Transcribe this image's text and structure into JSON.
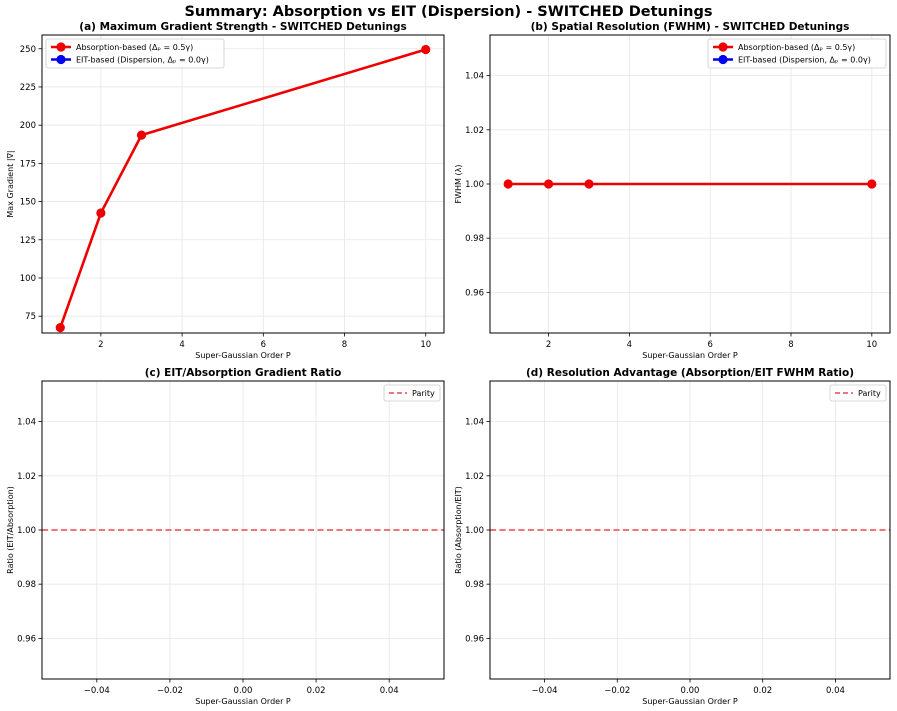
{
  "figure": {
    "title": "Summary: Absorption vs EIT (Dispersion) - SWITCHED Detunings"
  },
  "colors": {
    "absorption": "#ee0000",
    "eit": "#0000ee",
    "parity": "#e8494b",
    "grid": "#e6e6e6"
  },
  "chart_data": [
    {
      "type": "line",
      "title": "(a) Maximum Gradient Strength - SWITCHED Detunings",
      "xlabel": "Super-Gaussian Order P",
      "ylabel": "Max Gradient |∇|",
      "xlim": [
        0.55,
        10.45
      ],
      "ylim": [
        64,
        259
      ],
      "xticks": [
        2,
        4,
        6,
        8,
        10
      ],
      "yticks": [
        75,
        100,
        125,
        150,
        175,
        200,
        225,
        250
      ],
      "ytick_labels": [
        "75",
        "100",
        "125",
        "150",
        "175",
        "200",
        "225",
        "250"
      ],
      "grid": true,
      "legend": "top-left",
      "series": [
        {
          "name": "Absorption-based (Δₚ = 0.5γ)",
          "color": "#ee0000",
          "x": [
            1,
            2,
            3,
            10
          ],
          "y": [
            67.5,
            142.5,
            193.5,
            249.5
          ]
        },
        {
          "name": "EIT-based (Dispersion, Δₚ = 0.0γ)",
          "color": "#0000ee",
          "x": [],
          "y": []
        }
      ]
    },
    {
      "type": "line",
      "title": "(b) Spatial Resolution (FWHM) - SWITCHED Detunings",
      "xlabel": "Super-Gaussian Order P",
      "ylabel": "FWHM (λ)",
      "xlim": [
        0.55,
        10.45
      ],
      "ylim": [
        0.945,
        1.055
      ],
      "xticks": [
        2,
        4,
        6,
        8,
        10
      ],
      "yticks": [
        0.96,
        0.98,
        1.0,
        1.02,
        1.04
      ],
      "ytick_labels": [
        "0.96",
        "0.98",
        "1.00",
        "1.02",
        "1.04"
      ],
      "grid": true,
      "legend": "top-right",
      "series": [
        {
          "name": "Absorption-based (Δₚ = 0.5γ)",
          "color": "#ee0000",
          "x": [
            1,
            2,
            3,
            10
          ],
          "y": [
            1.0,
            1.0,
            1.0,
            1.0
          ]
        },
        {
          "name": "EIT-based (Dispersion, Δₚ = 0.0γ)",
          "color": "#0000ee",
          "x": [],
          "y": []
        }
      ]
    },
    {
      "type": "line",
      "title": "(c) EIT/Absorption Gradient Ratio",
      "xlabel": "Super-Gaussian Order P",
      "ylabel": "Ratio (EIT/Absorption)",
      "xlim": [
        -0.055,
        0.055
      ],
      "ylim": [
        0.945,
        1.055
      ],
      "xticks": [
        -0.04,
        -0.02,
        0.0,
        0.02,
        0.04
      ],
      "xtick_labels": [
        "−0.04",
        "−0.02",
        "0.00",
        "0.02",
        "0.04"
      ],
      "yticks": [
        0.96,
        0.98,
        1.0,
        1.02,
        1.04
      ],
      "ytick_labels": [
        "0.96",
        "0.98",
        "1.00",
        "1.02",
        "1.04"
      ],
      "grid": true,
      "legend": "top-right",
      "hline": {
        "y": 1.0,
        "label": "Parity",
        "style": "dashed",
        "color": "#e8494b"
      },
      "series": []
    },
    {
      "type": "line",
      "title": "(d) Resolution Advantage (Absorption/EIT FWHM Ratio)",
      "xlabel": "Super-Gaussian Order P",
      "ylabel": "Ratio (Absorption/EIT)",
      "xlim": [
        -0.055,
        0.055
      ],
      "ylim": [
        0.945,
        1.055
      ],
      "xticks": [
        -0.04,
        -0.02,
        0.0,
        0.02,
        0.04
      ],
      "xtick_labels": [
        "−0.04",
        "−0.02",
        "0.00",
        "0.02",
        "0.04"
      ],
      "yticks": [
        0.96,
        0.98,
        1.0,
        1.02,
        1.04
      ],
      "ytick_labels": [
        "0.96",
        "0.98",
        "1.00",
        "1.02",
        "1.04"
      ],
      "grid": true,
      "legend": "top-right",
      "hline": {
        "y": 1.0,
        "label": "Parity",
        "style": "dashed",
        "color": "#e8494b"
      },
      "series": []
    }
  ]
}
